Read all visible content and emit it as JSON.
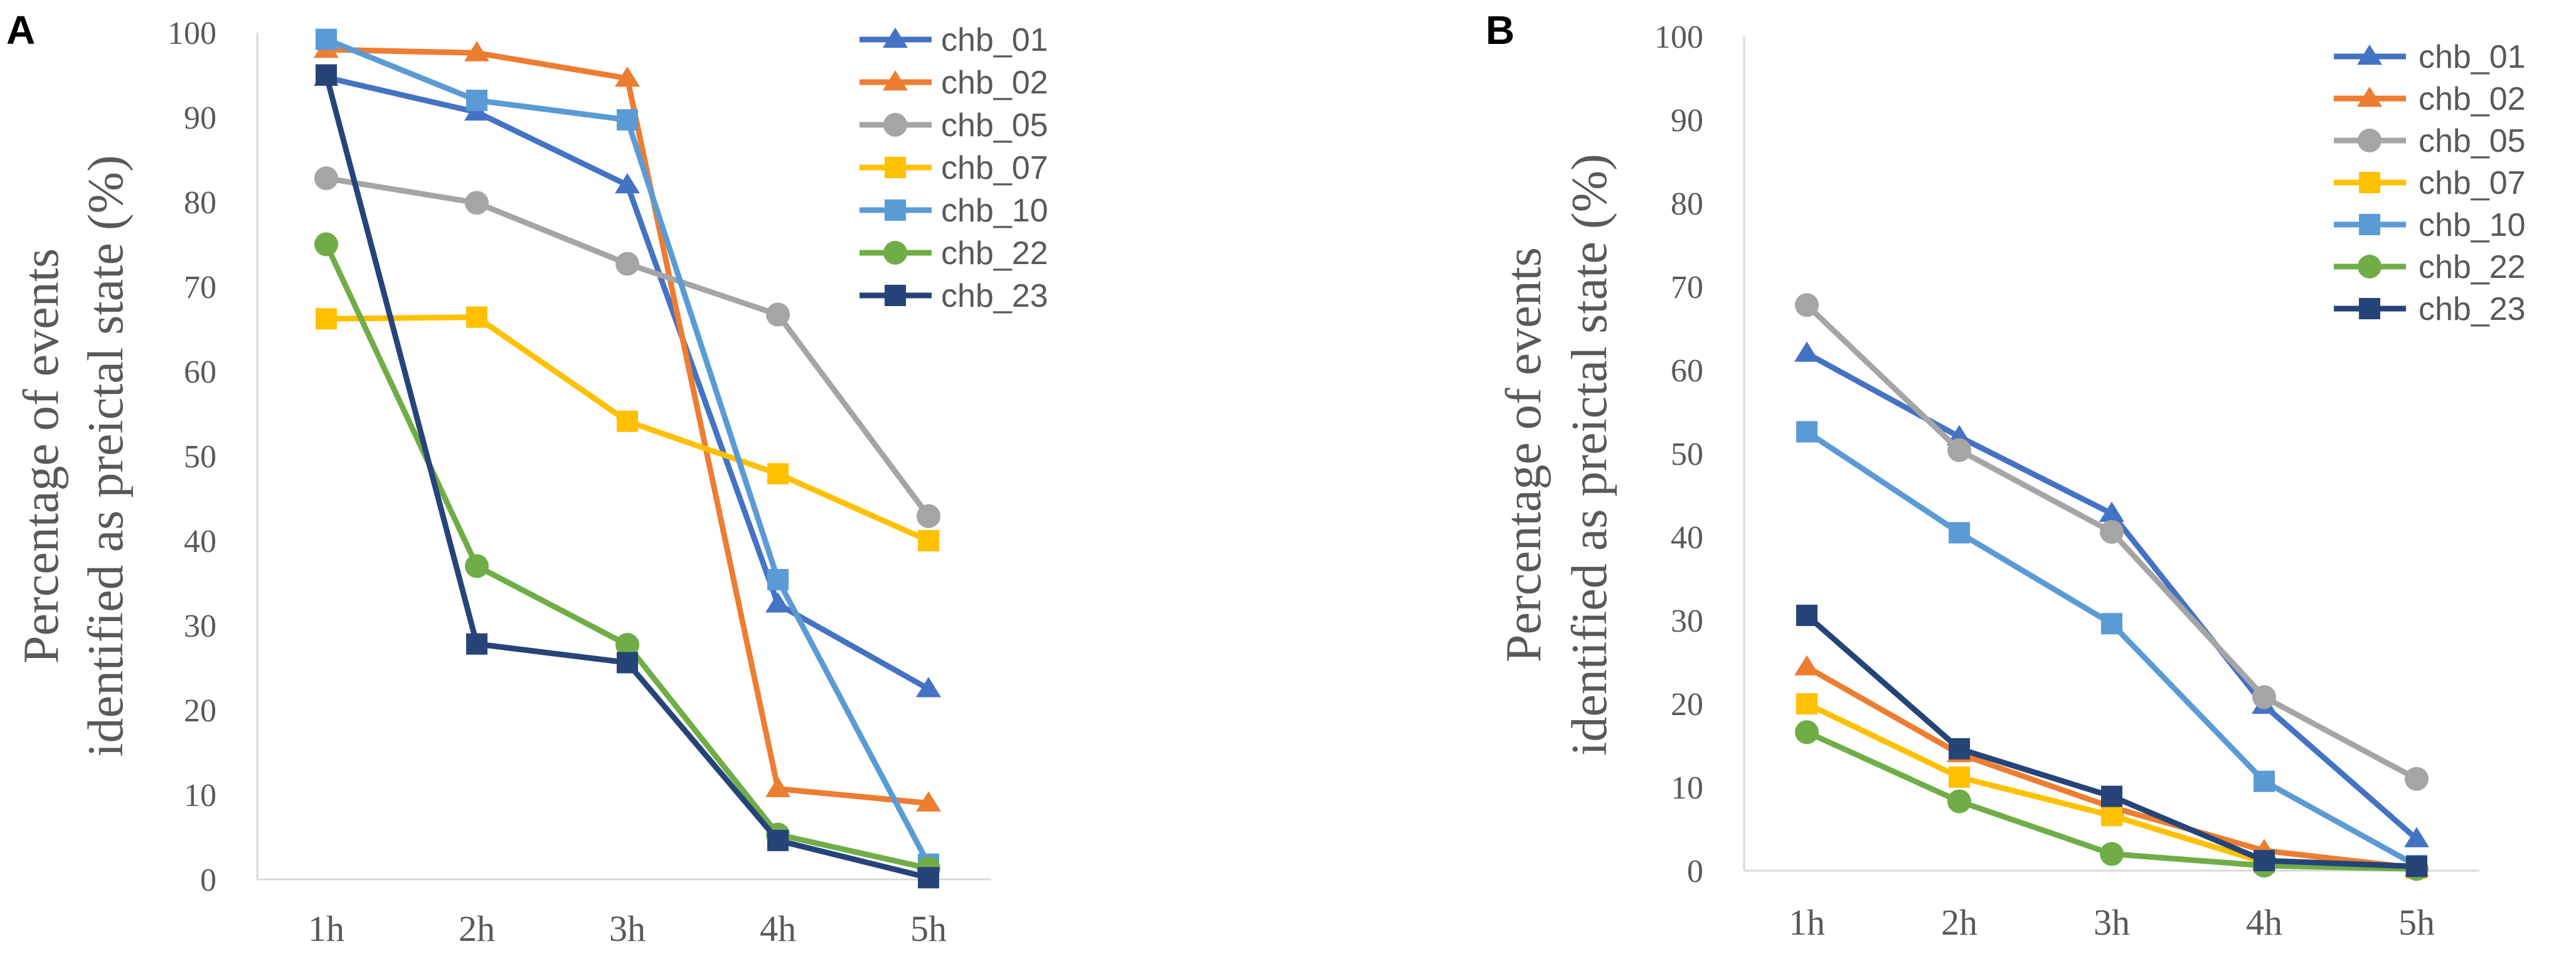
{
  "chart_data": [
    {
      "panel": "A",
      "type": "line",
      "categories": [
        "1h",
        "2h",
        "3h",
        "4h",
        "5h"
      ],
      "ylim": [
        0,
        100
      ],
      "yticks": [
        0,
        10,
        20,
        30,
        40,
        50,
        60,
        70,
        80,
        90,
        100
      ],
      "ylabel_lines": [
        "Percentage of events",
        "identified as preictal state (%)"
      ],
      "series": [
        {
          "name": "chb_01",
          "color": "#4472C4",
          "marker": "triangle",
          "values": [
            94.7,
            90.6,
            82.0,
            32.5,
            22.5
          ]
        },
        {
          "name": "chb_02",
          "color": "#ED7D31",
          "marker": "triangle",
          "values": [
            98.0,
            97.6,
            94.6,
            10.7,
            9.0
          ]
        },
        {
          "name": "chb_05",
          "color": "#A5A5A5",
          "marker": "circle",
          "values": [
            82.8,
            79.9,
            72.7,
            66.7,
            42.9
          ]
        },
        {
          "name": "chb_07",
          "color": "#FFC000",
          "marker": "square",
          "values": [
            66.2,
            66.4,
            54.1,
            47.9,
            40.0
          ]
        },
        {
          "name": "chb_10",
          "color": "#5B9BD5",
          "marker": "square",
          "values": [
            99.2,
            92.0,
            89.7,
            35.4,
            1.8
          ]
        },
        {
          "name": "chb_22",
          "color": "#70AD47",
          "marker": "circle",
          "values": [
            75.0,
            37.0,
            27.7,
            5.3,
            1.3
          ]
        },
        {
          "name": "chb_23",
          "color": "#264478",
          "marker": "square",
          "values": [
            95.0,
            27.8,
            25.6,
            4.6,
            0.2
          ]
        }
      ]
    },
    {
      "panel": "B",
      "type": "line",
      "categories": [
        "1h",
        "2h",
        "3h",
        "4h",
        "5h"
      ],
      "ylim": [
        0,
        100
      ],
      "yticks": [
        0,
        10,
        20,
        30,
        40,
        50,
        60,
        70,
        80,
        90,
        100
      ],
      "ylabel_lines": [
        "Percentage of events",
        "identified as preictal state (%)"
      ],
      "series": [
        {
          "name": "chb_01",
          "color": "#4472C4",
          "marker": "triangle",
          "values": [
            62.0,
            52.0,
            42.8,
            19.8,
            3.8
          ]
        },
        {
          "name": "chb_02",
          "color": "#ED7D31",
          "marker": "triangle",
          "values": [
            24.4,
            14.0,
            7.6,
            2.4,
            0.3
          ]
        },
        {
          "name": "chb_05",
          "color": "#A5A5A5",
          "marker": "circle",
          "values": [
            67.8,
            50.4,
            40.6,
            20.8,
            11.0
          ]
        },
        {
          "name": "chb_07",
          "color": "#FFC000",
          "marker": "square",
          "values": [
            20.0,
            11.2,
            6.6,
            1.0,
            0.3
          ]
        },
        {
          "name": "chb_10",
          "color": "#5B9BD5",
          "marker": "square",
          "values": [
            52.6,
            40.5,
            29.6,
            10.7,
            0.6
          ]
        },
        {
          "name": "chb_22",
          "color": "#70AD47",
          "marker": "circle",
          "values": [
            16.6,
            8.3,
            2.0,
            0.6,
            0.2
          ]
        },
        {
          "name": "chb_23",
          "color": "#264478",
          "marker": "square",
          "values": [
            30.6,
            14.6,
            8.9,
            1.2,
            0.5
          ]
        }
      ]
    }
  ]
}
